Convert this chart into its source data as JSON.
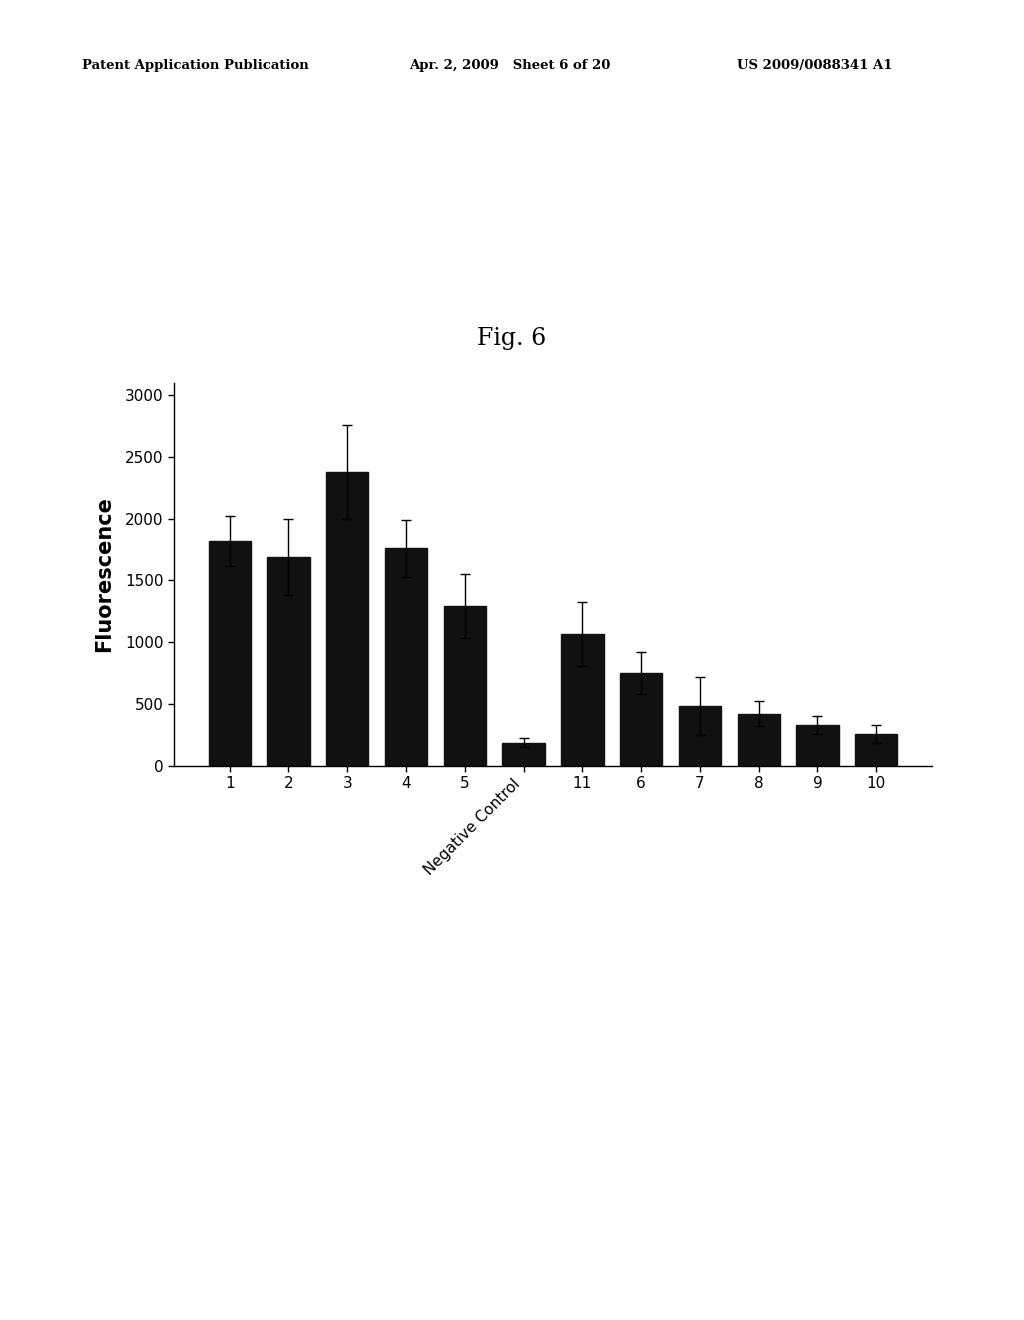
{
  "title": "Fig. 6",
  "ylabel": "Fluorescence",
  "categories": [
    "1",
    "2",
    "3",
    "4",
    "5",
    "Negative\nControl",
    "11",
    "6",
    "7",
    "8",
    "9",
    "10"
  ],
  "values": [
    1820,
    1690,
    2380,
    1760,
    1290,
    185,
    1065,
    750,
    485,
    420,
    330,
    255
  ],
  "errors": [
    200,
    310,
    380,
    230,
    260,
    35,
    260,
    170,
    235,
    100,
    75,
    70
  ],
  "bar_color": "#111111",
  "background_color": "#ffffff",
  "ylim": [
    0,
    3100
  ],
  "yticks": [
    0,
    500,
    1000,
    1500,
    2000,
    2500,
    3000
  ],
  "header_left": "Patent Application Publication",
  "header_mid": "Apr. 2, 2009   Sheet 6 of 20",
  "header_right": "US 2009/0088341 A1",
  "title_fontsize": 17,
  "axis_fontsize": 13,
  "tick_fontsize": 11,
  "header_fontsize": 9.5
}
